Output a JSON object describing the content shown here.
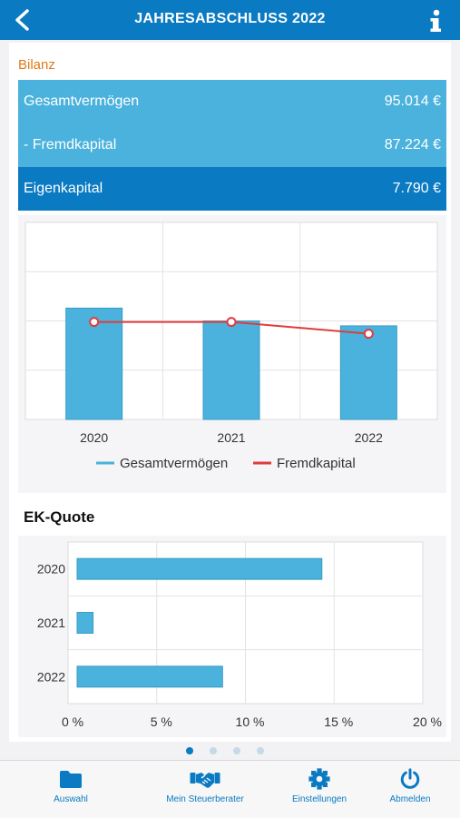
{
  "header": {
    "title": "JAHRESABSCHLUSS 2022",
    "back_icon": "back-chevron-icon",
    "info_icon": "info-icon"
  },
  "bilanz": {
    "section_title": "Bilanz",
    "rows": [
      {
        "label": "Gesamtvermögen",
        "value": "95.014 €"
      },
      {
        "label": "- Fremdkapital",
        "value": "87.224 €"
      },
      {
        "label": "Eigenkapital",
        "value": "7.790 €"
      }
    ]
  },
  "colors": {
    "accent": "#0a7ac2",
    "bar": "#4ab2dc",
    "line": "#e03c3c",
    "section_title": "#e07a1a"
  },
  "chart_data": [
    {
      "type": "bar",
      "categories": [
        "2020",
        "2021",
        "2022"
      ],
      "series": [
        {
          "name": "Gesamtvermögen",
          "type": "bar",
          "values": [
            113,
            100,
            95
          ]
        },
        {
          "name": "Fremdkapital",
          "type": "line",
          "values": [
            99,
            99,
            87
          ]
        }
      ],
      "ylim": [
        0,
        200
      ],
      "grid": true,
      "legend": "bottom"
    },
    {
      "type": "bar",
      "orientation": "horizontal",
      "title": "EK-Quote",
      "categories": [
        "2020",
        "2021",
        "2022"
      ],
      "values": [
        13.8,
        0.9,
        8.2
      ],
      "xticks": [
        "0 %",
        "5 %",
        "10 %",
        "15 %",
        "20 %"
      ],
      "xlim": [
        0,
        20
      ],
      "grid": true
    }
  ],
  "pager": {
    "count": 4,
    "active": 0
  },
  "tabbar": {
    "items": [
      {
        "label": "Auswahl",
        "icon": "folder-icon"
      },
      {
        "label": "Mein Steuerberater",
        "icon": "handshake-icon"
      },
      {
        "label": "Einstellungen",
        "icon": "gear-icon"
      },
      {
        "label": "Abmelden",
        "icon": "power-icon"
      }
    ]
  }
}
